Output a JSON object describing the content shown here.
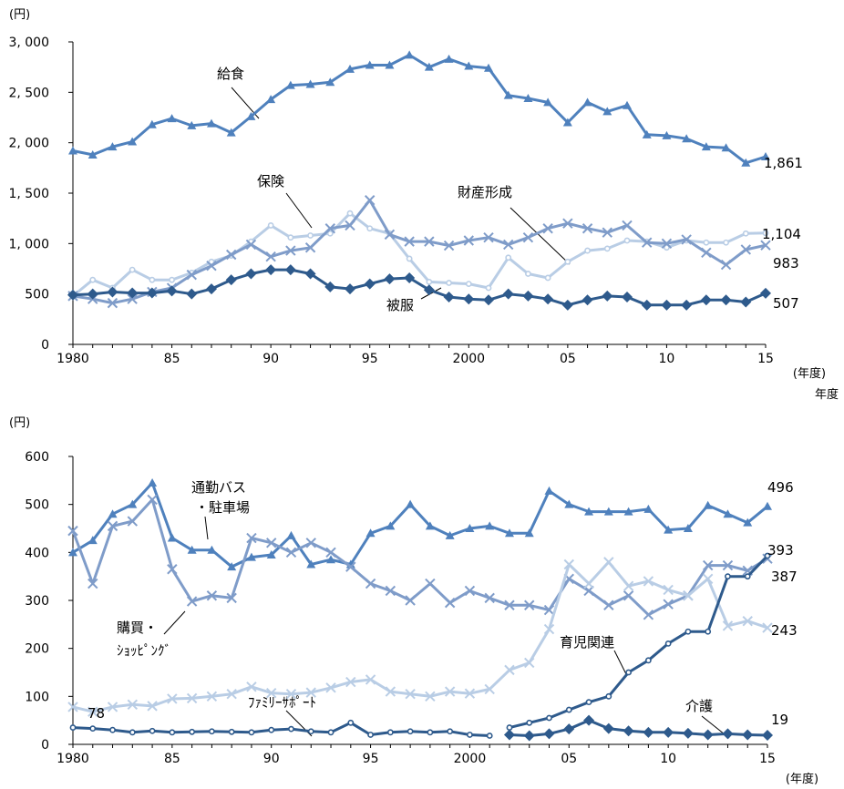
{
  "chart_data": [
    {
      "type": "line",
      "y_unit": "(円)",
      "x_unit": "(年度)",
      "extra_label": "年度",
      "x": [
        1980,
        1981,
        1982,
        1983,
        1984,
        1985,
        1986,
        1987,
        1988,
        1989,
        1990,
        1991,
        1992,
        1993,
        1994,
        1995,
        1996,
        1997,
        1998,
        1999,
        2000,
        2001,
        2002,
        2003,
        2004,
        2005,
        2006,
        2007,
        2008,
        2009,
        2010,
        2011,
        2012,
        2013,
        2014,
        2015
      ],
      "x_ticks": [
        1980,
        1985,
        1990,
        1995,
        2000,
        2005,
        2010,
        2015
      ],
      "x_tick_labels": [
        "1980",
        "85",
        "90",
        "95",
        "2000",
        "05",
        "10",
        "15"
      ],
      "ylim": [
        0,
        3000
      ],
      "y_ticks": [
        0,
        500,
        1000,
        1500,
        2000,
        2500,
        3000
      ],
      "y_tick_labels": [
        "0",
        "500",
        "1, 000",
        "1, 500",
        "2, 000",
        "2, 500",
        "3, 000"
      ],
      "grid": false,
      "series": [
        {
          "name": "給食",
          "color": "#4f81bd",
          "marker": "triangle",
          "end_label": "1,861",
          "values": [
            1920,
            1880,
            1960,
            2010,
            2180,
            2240,
            2170,
            2190,
            2100,
            2260,
            2430,
            2570,
            2580,
            2600,
            2730,
            2770,
            2770,
            2870,
            2750,
            2830,
            2760,
            2740,
            2470,
            2440,
            2400,
            2200,
            2400,
            2310,
            2370,
            2080,
            2070,
            2040,
            1960,
            1950,
            1800,
            1861
          ]
        },
        {
          "name": "保険",
          "color": "#b9cde5",
          "marker": "circle",
          "end_label": "1,104",
          "values": [
            480,
            640,
            560,
            740,
            640,
            640,
            710,
            820,
            880,
            1020,
            1180,
            1060,
            1080,
            1100,
            1300,
            1150,
            1100,
            850,
            620,
            610,
            600,
            560,
            860,
            700,
            660,
            820,
            930,
            950,
            1030,
            1020,
            960,
            1030,
            1010,
            1010,
            1100,
            1104
          ]
        },
        {
          "name": "財産形成",
          "color": "#7f9cc9",
          "marker": "x",
          "end_label": "983",
          "values": [
            480,
            450,
            410,
            450,
            520,
            560,
            690,
            780,
            890,
            990,
            870,
            930,
            960,
            1150,
            1180,
            1430,
            1090,
            1020,
            1020,
            980,
            1030,
            1060,
            990,
            1060,
            1150,
            1200,
            1150,
            1110,
            1180,
            1010,
            1000,
            1040,
            910,
            790,
            940,
            983
          ]
        },
        {
          "name": "被服",
          "color": "#2e5a8c",
          "marker": "diamond",
          "end_label": "507",
          "values": [
            490,
            500,
            520,
            510,
            510,
            530,
            500,
            550,
            640,
            700,
            740,
            740,
            700,
            570,
            550,
            600,
            650,
            660,
            540,
            470,
            450,
            440,
            500,
            480,
            450,
            390,
            440,
            480,
            470,
            390,
            390,
            390,
            440,
            440,
            420,
            507
          ]
        }
      ]
    },
    {
      "type": "line",
      "y_unit": "(円)",
      "x_unit": "(年度)",
      "x": [
        1980,
        1981,
        1982,
        1983,
        1984,
        1985,
        1986,
        1987,
        1988,
        1989,
        1990,
        1991,
        1992,
        1993,
        1994,
        1995,
        1996,
        1997,
        1998,
        1999,
        2000,
        2001,
        2002,
        2003,
        2004,
        2005,
        2006,
        2007,
        2008,
        2009,
        2010,
        2011,
        2012,
        2013,
        2014,
        2015
      ],
      "x_ticks": [
        1980,
        1985,
        1990,
        1995,
        2000,
        2005,
        2010,
        2015
      ],
      "x_tick_labels": [
        "1980",
        "85",
        "90",
        "95",
        "2000",
        "05",
        "10",
        "15"
      ],
      "ylim": [
        0,
        600
      ],
      "y_ticks": [
        0,
        100,
        200,
        300,
        400,
        500,
        600
      ],
      "y_tick_labels": [
        "0",
        "100",
        "200",
        "300",
        "400",
        "500",
        "600"
      ],
      "grid": false,
      "series": [
        {
          "name": "通勤バス\n・駐車場",
          "color": "#4f81bd",
          "marker": "triangle",
          "end_label": "496",
          "values": [
            400,
            425,
            480,
            500,
            545,
            430,
            405,
            405,
            370,
            390,
            395,
            435,
            375,
            385,
            375,
            440,
            455,
            500,
            455,
            435,
            450,
            455,
            440,
            440,
            528,
            500,
            485,
            485,
            485,
            490,
            447,
            450,
            498,
            480,
            462,
            496
          ]
        },
        {
          "name": "購買・\nｼｮｯﾋﾟﾝｸﾞ",
          "color": "#7f9cc9",
          "marker": "x",
          "end_label": "387",
          "values": [
            445,
            335,
            455,
            465,
            510,
            365,
            298,
            310,
            305,
            430,
            420,
            400,
            420,
            400,
            370,
            335,
            320,
            300,
            335,
            295,
            320,
            305,
            290,
            290,
            280,
            345,
            320,
            290,
            310,
            270,
            292,
            310,
            373,
            373,
            362,
            387
          ]
        },
        {
          "name": "ﾌｧﾐﾘｰｻﾎﾟｰﾄ",
          "color": "#b9cde5",
          "marker": "x",
          "end_label": "243",
          "start_label": "78",
          "values": [
            78,
            68,
            78,
            83,
            80,
            95,
            96,
            100,
            105,
            120,
            107,
            105,
            108,
            118,
            130,
            135,
            110,
            105,
            100,
            110,
            106,
            115,
            155,
            170,
            240,
            375,
            335,
            380,
            330,
            340,
            322,
            310,
            345,
            247,
            257,
            243
          ]
        },
        {
          "name": "育児関連",
          "color": "#2e5a8c",
          "marker": "circle",
          "end_label": "393",
          "values": [
            null,
            null,
            null,
            null,
            null,
            null,
            null,
            null,
            null,
            null,
            null,
            null,
            null,
            null,
            null,
            null,
            null,
            null,
            null,
            null,
            null,
            null,
            35,
            45,
            55,
            72,
            88,
            100,
            150,
            175,
            210,
            235,
            235,
            350,
            350,
            393
          ]
        },
        {
          "name": "介護",
          "color": "#2e5a8c",
          "marker": "diamond",
          "end_label": "19",
          "values": [
            null,
            null,
            null,
            null,
            null,
            null,
            null,
            null,
            null,
            null,
            null,
            null,
            null,
            null,
            null,
            null,
            null,
            null,
            null,
            null,
            null,
            null,
            20,
            18,
            22,
            32,
            50,
            33,
            28,
            25,
            25,
            23,
            20,
            22,
            20,
            19
          ]
        },
        {
          "name": "",
          "color": "#2e5a8c",
          "marker": "circle",
          "end_label": "",
          "values": [
            35,
            33,
            30,
            25,
            28,
            25,
            26,
            27,
            26,
            25,
            30,
            32,
            27,
            25,
            45,
            20,
            25,
            27,
            25,
            27,
            20,
            18,
            null,
            null,
            null,
            null,
            null,
            null,
            null,
            null,
            null,
            null,
            null,
            null,
            null,
            null
          ]
        }
      ]
    }
  ]
}
